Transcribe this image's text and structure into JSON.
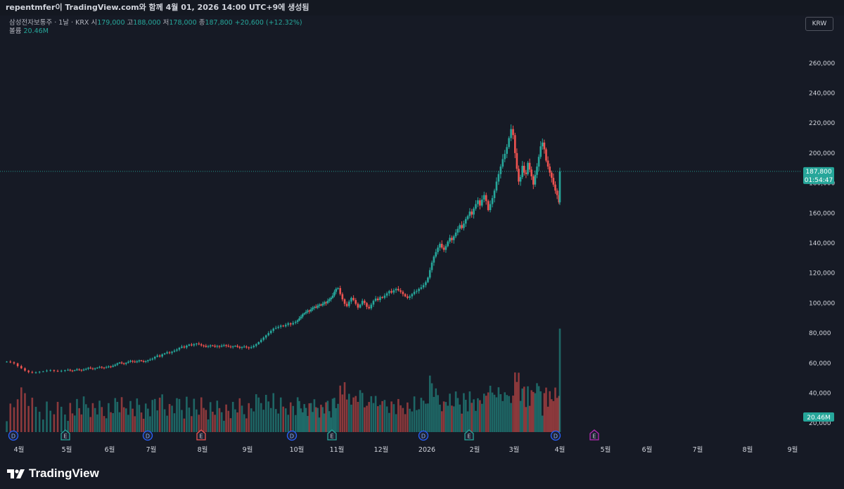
{
  "header": {
    "title": "repentmfer이 TradingView.com와 함께 4월 01, 2026 14:00 UTC+9에 생성됨"
  },
  "legend": {
    "symbol": "삼성전자보통주 · 1날 · KRX",
    "open_label": "시",
    "open": "179,000",
    "high_label": "고",
    "high": "188,000",
    "low_label": "저",
    "low": "178,000",
    "close_label": "종",
    "close": "187,800",
    "change": "+20,600 (+12.32%)",
    "volume_label": "볼륨",
    "volume": "20.46M"
  },
  "currency": "KRW",
  "price_tag": {
    "price": "187,800",
    "countdown": "01:54:47"
  },
  "volume_tag": "20.46M",
  "footer": {
    "logo_text": "TradingView"
  },
  "colors": {
    "up": "#26a69a",
    "down": "#ef5350",
    "background": "#161a25",
    "text": "#d1d4dc",
    "event": "#2962ff",
    "earnings": "#b62ab3"
  },
  "events": [
    {
      "type": "D",
      "month": "2025-04"
    },
    {
      "type": "E",
      "month": "2025-05"
    },
    {
      "type": "D",
      "month": "2025-07"
    },
    {
      "type": "E",
      "month": "2025-08"
    },
    {
      "type": "D",
      "month": "2025-10"
    },
    {
      "type": "E",
      "month": "2025-11"
    },
    {
      "type": "D",
      "month": "2026-01"
    },
    {
      "type": "E",
      "month": "2026-02"
    },
    {
      "type": "D",
      "month": "2026-04"
    },
    {
      "type": "E",
      "month": "2026-04"
    }
  ],
  "chart_data": {
    "type": "candlestick",
    "title": "삼성전자보통주 · 1날 · KRX",
    "currency": "KRW",
    "y_ticks": [
      "20,000",
      "40,000",
      "60,000",
      "80,000",
      "100,000",
      "120,000",
      "140,000",
      "160,000",
      "180,000",
      "200,000",
      "220,000",
      "240,000",
      "260,000"
    ],
    "ylim": [
      12000,
      268000
    ],
    "x_ticks": [
      "4월",
      "5월",
      "6월",
      "7월",
      "8월",
      "9월",
      "10월",
      "11월",
      "12월",
      "2026",
      "2월",
      "3월",
      "4월",
      "5월",
      "6월",
      "7월",
      "8월",
      "9월"
    ],
    "last_price": 187800,
    "series": [
      {
        "month": "2025-04",
        "closes": [
          61000,
          60500,
          59800,
          58000,
          56500,
          55000,
          54000,
          53500,
          53800,
          54200,
          54500,
          55000,
          55300,
          54800,
          54500,
          54900,
          55200
        ]
      },
      {
        "month": "2025-05",
        "closes": [
          55500,
          55000,
          54800,
          55300,
          55900,
          55500,
          55100,
          55700,
          56200,
          56900,
          56400,
          56000,
          56500,
          57000,
          57400,
          57000,
          56800,
          57300,
          57800
        ]
      },
      {
        "month": "2025-06",
        "closes": [
          57500,
          58200,
          58900,
          59800,
          60400,
          59800,
          59500,
          60200,
          60900,
          61500,
          61000,
          60600,
          61200,
          61800,
          61300,
          60800,
          61300,
          61900,
          62400
        ]
      },
      {
        "month": "2025-07",
        "closes": [
          63000,
          64200,
          65000,
          64400,
          65800,
          66500,
          67200,
          66800,
          67600,
          68300,
          69000,
          70200,
          71000,
          70400,
          71600,
          72400,
          71800,
          72600,
          73000,
          72500,
          71800
        ]
      },
      {
        "month": "2025-08",
        "closes": [
          71500,
          70800,
          71200,
          71800,
          71500,
          70900,
          71400,
          71000,
          71600,
          72000,
          71500,
          71000,
          70600,
          71100,
          71500,
          70800,
          70200,
          70700,
          71000,
          70500
        ]
      },
      {
        "month": "2025-09",
        "closes": [
          70000,
          70600,
          71500,
          72600,
          74000,
          75500,
          77000,
          78500,
          80000,
          81500,
          83000,
          83500,
          84200,
          85000,
          84500,
          85500,
          86500,
          85800,
          86800,
          87500
        ]
      },
      {
        "month": "2025-10",
        "closes": [
          88500,
          89800,
          91000,
          92500,
          93200,
          94200,
          95000,
          94500,
          95800,
          96800,
          97500,
          97000,
          98200,
          99000,
          98500,
          99500,
          100500,
          100000,
          101500,
          102500,
          103500,
          105000,
          107500,
          109500
        ]
      },
      {
        "month": "2025-11",
        "closes": [
          110000,
          106000,
          102500,
          99500,
          98000,
          101000,
          103500,
          102000,
          99500,
          97000,
          99000,
          101500,
          100000,
          97500,
          96500,
          99000,
          101500,
          103000,
          102000,
          104000
        ]
      },
      {
        "month": "2025-12",
        "closes": [
          103500,
          105000,
          106500,
          108000,
          107000,
          108500,
          109500,
          108500,
          107500,
          106000,
          104500,
          103500,
          104500,
          106000,
          107500,
          108000,
          109500,
          110500,
          112000,
          114000
        ]
      },
      {
        "month": "2026-01",
        "closes": [
          117000,
          122000,
          127000,
          131000,
          134000,
          137000,
          139500,
          137000,
          135500,
          138000,
          141000,
          143500,
          142000,
          144500,
          147000,
          149500,
          152000,
          150000,
          153000,
          156000,
          158000,
          161000,
          159000,
          163000
        ]
      },
      {
        "month": "2026-02",
        "closes": [
          166000,
          168500,
          165000,
          169000,
          172000,
          168000,
          162000,
          166000,
          170000,
          175000,
          181000,
          186000,
          191000,
          196000,
          199500,
          204000,
          210000,
          216000,
          212000
        ]
      },
      {
        "month": "2026-03",
        "closes": [
          200000,
          189500,
          181000,
          184000,
          191500,
          187000,
          186000,
          193500,
          189000,
          184500,
          179000,
          185500,
          191000,
          197500,
          204500,
          207000,
          202500,
          195000,
          191000,
          187000,
          183500,
          179000,
          175000,
          172000,
          167200
        ]
      },
      {
        "month": "2026-04",
        "closes": [
          187800
        ]
      }
    ]
  }
}
